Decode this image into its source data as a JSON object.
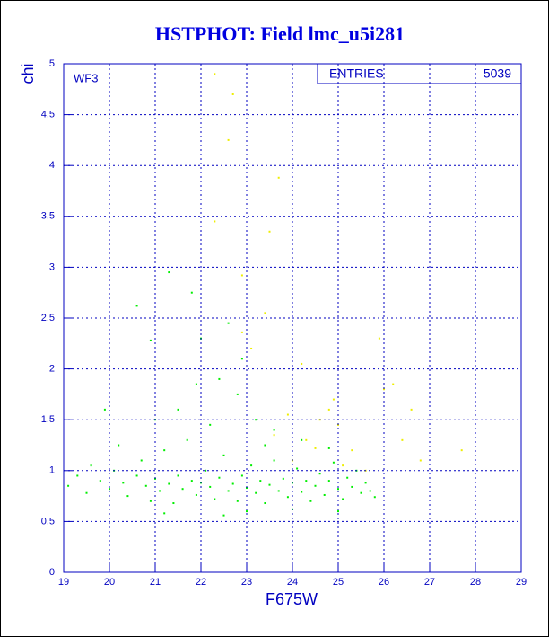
{
  "chart_data": {
    "type": "scatter",
    "title": "HSTPHOT: Field lmc_u5i281",
    "xlabel": "F675W",
    "ylabel": "chi",
    "annotation": "WF3",
    "stats": {
      "label": "ENTRIES",
      "value": 5039
    },
    "xlim": [
      19,
      29
    ],
    "ylim": [
      0,
      5
    ],
    "xticks": [
      19,
      20,
      21,
      22,
      23,
      24,
      25,
      26,
      27,
      28,
      29
    ],
    "yticks": [
      0,
      0.5,
      1,
      1.5,
      2,
      2.5,
      3,
      3.5,
      4,
      4.5,
      5
    ],
    "grid": true,
    "series": [
      {
        "color": "#00ee00",
        "x": [
          19.1,
          19.3,
          19.5,
          19.6,
          19.8,
          20.0,
          20.1,
          20.3,
          20.4,
          20.6,
          20.7,
          20.8,
          20.9,
          21.0,
          21.1,
          21.2,
          21.3,
          21.4,
          21.5,
          21.6,
          21.7,
          21.8,
          21.9,
          22.0,
          22.1,
          22.2,
          22.3,
          22.4,
          22.5,
          22.6,
          22.7,
          22.8,
          22.9,
          23.0,
          23.1,
          23.2,
          23.3,
          23.4,
          23.5,
          23.6,
          23.7,
          23.8,
          23.9,
          24.0,
          24.1,
          24.2,
          24.3,
          24.4,
          24.5,
          24.6,
          24.7,
          24.8,
          24.9,
          25.0,
          25.1,
          25.2,
          25.3,
          25.4,
          25.5,
          25.6,
          25.7,
          25.8,
          20.6,
          21.3,
          21.8,
          22.0,
          22.4,
          21.5,
          22.8,
          23.2,
          23.6,
          24.2,
          21.0,
          20.2,
          19.9,
          22.9,
          23.4,
          22.2,
          24.8,
          21.9,
          20.9,
          22.6,
          23.0,
          24.0,
          21.2,
          22.5,
          25.0
        ],
        "y": [
          0.85,
          0.95,
          0.78,
          1.05,
          0.9,
          0.82,
          1.0,
          0.88,
          0.75,
          0.95,
          1.1,
          0.85,
          0.7,
          0.92,
          0.8,
          1.2,
          0.87,
          0.68,
          0.95,
          0.82,
          1.3,
          0.9,
          0.76,
          0.88,
          1.0,
          0.84,
          0.72,
          0.93,
          1.15,
          0.8,
          0.87,
          0.7,
          0.95,
          0.83,
          1.05,
          0.78,
          0.9,
          0.68,
          0.86,
          1.1,
          0.8,
          0.92,
          0.74,
          0.88,
          1.02,
          0.79,
          0.9,
          0.7,
          0.85,
          0.97,
          0.76,
          0.9,
          1.08,
          0.82,
          0.72,
          0.93,
          0.84,
          1.0,
          0.78,
          0.88,
          0.8,
          0.74,
          2.62,
          2.95,
          2.75,
          2.3,
          1.9,
          1.6,
          1.75,
          1.5,
          1.4,
          1.3,
          1.5,
          1.25,
          1.6,
          2.1,
          1.25,
          1.45,
          1.22,
          1.85,
          2.28,
          2.45,
          0.6,
          0.62,
          0.58,
          0.56,
          0.6
        ]
      },
      {
        "color": "#eeee00",
        "x": [
          22.3,
          22.7,
          22.6,
          23.7,
          22.3,
          23.5,
          22.9,
          23.4,
          23.1,
          22.9,
          24.2,
          24.6,
          24.3,
          25.0,
          25.3,
          24.8,
          25.6,
          26.0,
          26.2,
          26.6,
          26.8,
          27.7,
          25.9,
          24.0,
          24.5,
          25.1,
          24.9,
          23.9,
          23.6,
          26.4
        ],
        "y": [
          4.9,
          4.7,
          4.25,
          3.88,
          3.45,
          3.35,
          2.92,
          2.55,
          2.2,
          2.36,
          2.05,
          1.5,
          1.3,
          1.45,
          1.2,
          1.6,
          1.0,
          1.8,
          1.85,
          1.6,
          1.1,
          1.2,
          2.3,
          1.1,
          1.22,
          1.05,
          1.7,
          1.55,
          1.35,
          1.3
        ]
      }
    ]
  }
}
